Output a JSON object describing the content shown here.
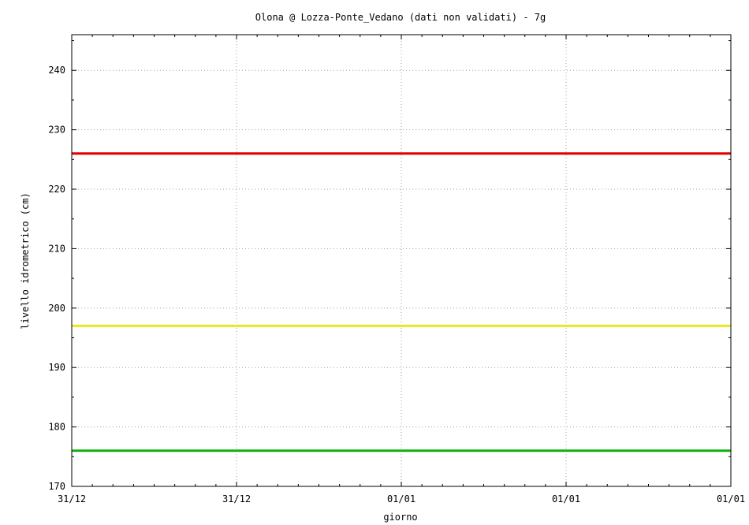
{
  "chart_data": {
    "type": "line",
    "title": "Olona @  Lozza-Ponte_Vedano (dati non validati) - 7g",
    "xlabel": "giorno",
    "ylabel": "livello idrometrico (cm)",
    "ylim": [
      170,
      246
    ],
    "y_ticks": [
      170,
      180,
      190,
      200,
      210,
      220,
      230,
      240
    ],
    "x_tick_labels": [
      "31/12",
      "31/12",
      "01/01",
      "01/01",
      "01/01"
    ],
    "grid": true,
    "series": [
      {
        "values": [
          226,
          226
        ],
        "color": "#e00000"
      },
      {
        "values": [
          197,
          197
        ],
        "color": "#e8e820"
      },
      {
        "values": [
          176,
          176
        ],
        "color": "#10b010"
      }
    ]
  }
}
